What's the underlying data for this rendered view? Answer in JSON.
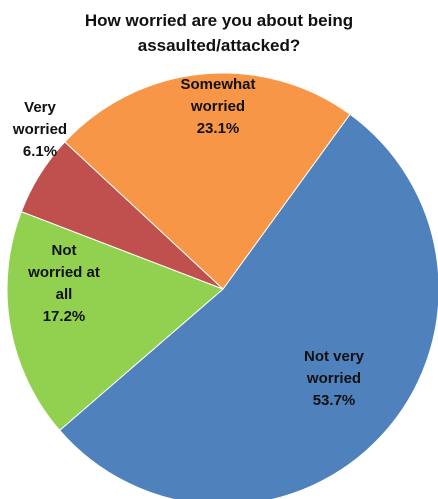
{
  "chart_data": {
    "type": "pie",
    "title_lines": [
      "How worried are you about being",
      "assaulted/attacked?"
    ],
    "slices": [
      {
        "label_lines": [
          "Not very",
          "worried"
        ],
        "value_label": "53.7%",
        "value": 53.7,
        "color": "#4F81BD"
      },
      {
        "label_lines": [
          "Not",
          "worried at",
          "all"
        ],
        "value_label": "17.2%",
        "value": 17.2,
        "color": "#92D050"
      },
      {
        "label_lines": [
          "Very",
          "worried"
        ],
        "value_label": "6.1%",
        "value": 6.1,
        "color": "#C0504D"
      },
      {
        "label_lines": [
          "Somewhat",
          "worried"
        ],
        "value_label": "23.1%",
        "value": 23.1,
        "color": "#F79646"
      }
    ]
  }
}
